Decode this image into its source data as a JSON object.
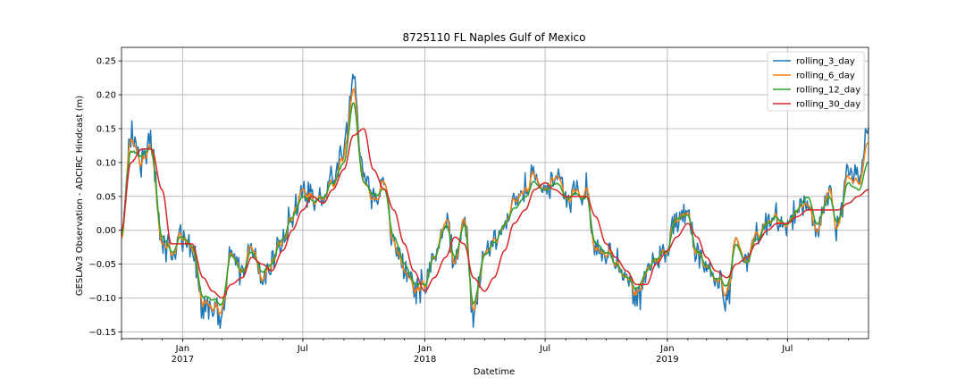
{
  "chart_data": {
    "type": "line",
    "title": "8725110 FL Naples Gulf of Mexico",
    "xlabel": "Datetime",
    "ylabel": "GESLAv3 Observation - ADCIRC Hindcast (m)",
    "xlim": [
      "2016-10-01",
      "2019-10-31"
    ],
    "ylim": [
      -0.16,
      0.27
    ],
    "grid": true,
    "legend_position": "top-right",
    "y_ticks": [
      -0.15,
      -0.1,
      -0.05,
      0.0,
      0.05,
      0.1,
      0.15,
      0.2,
      0.25
    ],
    "y_tick_labels": [
      "−0.15",
      "−0.10",
      "−0.05",
      "0.00",
      "0.05",
      "0.10",
      "0.15",
      "0.20",
      "0.25"
    ],
    "x_major_ticks": [
      {
        "date": "2017-01-01",
        "label": "Jan",
        "sublabel": "2017"
      },
      {
        "date": "2017-07-01",
        "label": "Jul",
        "sublabel": ""
      },
      {
        "date": "2018-01-01",
        "label": "Jan",
        "sublabel": "2018"
      },
      {
        "date": "2018-07-01",
        "label": "Jul",
        "sublabel": ""
      },
      {
        "date": "2019-01-01",
        "label": "Jan",
        "sublabel": "2019"
      },
      {
        "date": "2019-07-01",
        "label": "Jul",
        "sublabel": ""
      }
    ],
    "anchor_dates": [
      "2016-10-01",
      "2016-10-15",
      "2016-11-01",
      "2016-11-15",
      "2016-12-01",
      "2016-12-15",
      "2017-01-01",
      "2017-01-15",
      "2017-02-01",
      "2017-02-15",
      "2017-03-01",
      "2017-03-15",
      "2017-04-01",
      "2017-04-15",
      "2017-05-01",
      "2017-05-15",
      "2017-06-01",
      "2017-06-15",
      "2017-07-01",
      "2017-07-15",
      "2017-08-01",
      "2017-08-15",
      "2017-09-01",
      "2017-09-15",
      "2017-10-01",
      "2017-10-15",
      "2017-11-01",
      "2017-11-15",
      "2017-12-01",
      "2017-12-15",
      "2018-01-01",
      "2018-01-15",
      "2018-02-01",
      "2018-02-15",
      "2018-03-01",
      "2018-03-15",
      "2018-04-01",
      "2018-04-15",
      "2018-05-01",
      "2018-05-15",
      "2018-06-01",
      "2018-06-15",
      "2018-07-01",
      "2018-07-15",
      "2018-08-01",
      "2018-08-15",
      "2018-09-01",
      "2018-09-15",
      "2018-10-01",
      "2018-10-15",
      "2018-11-01",
      "2018-11-15",
      "2018-12-01",
      "2018-12-15",
      "2019-01-01",
      "2019-01-15",
      "2019-02-01",
      "2019-02-15",
      "2019-03-01",
      "2019-03-15",
      "2019-04-01",
      "2019-04-15",
      "2019-05-01",
      "2019-05-15",
      "2019-06-01",
      "2019-06-15",
      "2019-07-01",
      "2019-07-15",
      "2019-08-01",
      "2019-08-15",
      "2019-09-01",
      "2019-09-15",
      "2019-10-01",
      "2019-10-15",
      "2019-10-31"
    ],
    "series": [
      {
        "name": "rolling_3_day",
        "color": "#1f77b4",
        "smooth": 0,
        "detail": 0.018,
        "values": [
          -0.02,
          0.15,
          0.1,
          0.13,
          -0.02,
          -0.03,
          -0.01,
          -0.02,
          -0.12,
          -0.11,
          -0.13,
          -0.04,
          -0.06,
          -0.02,
          -0.07,
          -0.05,
          -0.01,
          0.02,
          0.06,
          0.04,
          0.05,
          0.08,
          0.12,
          0.23,
          0.08,
          0.04,
          0.07,
          -0.02,
          -0.06,
          -0.09,
          -0.08,
          -0.04,
          0.02,
          -0.05,
          0.02,
          -0.13,
          -0.04,
          -0.02,
          0.01,
          0.04,
          0.06,
          0.08,
          0.06,
          0.08,
          0.05,
          0.05,
          0.06,
          -0.03,
          -0.03,
          -0.05,
          -0.07,
          -0.11,
          -0.06,
          -0.04,
          -0.03,
          0.02,
          0.02,
          -0.03,
          -0.05,
          -0.07,
          -0.1,
          -0.01,
          -0.05,
          0.0,
          0.01,
          0.02,
          0.01,
          0.03,
          0.04,
          0.0,
          0.06,
          0.0,
          0.09,
          0.08,
          0.15
        ]
      },
      {
        "name": "rolling_6_day",
        "color": "#ff7f0e",
        "smooth": 1,
        "detail": 0.012,
        "values": [
          -0.02,
          0.14,
          0.1,
          0.12,
          -0.02,
          -0.03,
          -0.01,
          -0.02,
          -0.11,
          -0.11,
          -0.12,
          -0.04,
          -0.06,
          -0.02,
          -0.07,
          -0.05,
          -0.01,
          0.02,
          0.06,
          0.04,
          0.05,
          0.07,
          0.11,
          0.21,
          0.07,
          0.04,
          0.07,
          -0.02,
          -0.06,
          -0.09,
          -0.08,
          -0.04,
          0.02,
          -0.05,
          0.02,
          -0.12,
          -0.04,
          -0.02,
          0.01,
          0.04,
          0.06,
          0.08,
          0.06,
          0.08,
          0.05,
          0.05,
          0.06,
          -0.03,
          -0.03,
          -0.05,
          -0.07,
          -0.1,
          -0.06,
          -0.04,
          -0.03,
          0.02,
          0.02,
          -0.03,
          -0.05,
          -0.07,
          -0.09,
          -0.01,
          -0.05,
          0.0,
          0.01,
          0.02,
          0.01,
          0.03,
          0.04,
          0.0,
          0.06,
          0.0,
          0.08,
          0.07,
          0.13
        ]
      },
      {
        "name": "rolling_12_day",
        "color": "#2ca02c",
        "smooth": 2,
        "detail": 0.007,
        "values": [
          -0.01,
          0.12,
          0.11,
          0.12,
          -0.01,
          -0.03,
          -0.01,
          -0.02,
          -0.1,
          -0.1,
          -0.11,
          -0.04,
          -0.06,
          -0.03,
          -0.06,
          -0.05,
          -0.01,
          0.02,
          0.05,
          0.04,
          0.05,
          0.07,
          0.1,
          0.19,
          0.07,
          0.05,
          0.06,
          -0.01,
          -0.05,
          -0.08,
          -0.08,
          -0.04,
          0.01,
          -0.04,
          0.01,
          -0.11,
          -0.04,
          -0.02,
          0.01,
          0.03,
          0.05,
          0.07,
          0.06,
          0.07,
          0.05,
          0.05,
          0.05,
          -0.02,
          -0.03,
          -0.05,
          -0.07,
          -0.09,
          -0.06,
          -0.04,
          -0.03,
          0.02,
          0.02,
          -0.03,
          -0.05,
          -0.07,
          -0.08,
          -0.02,
          -0.05,
          -0.01,
          0.01,
          0.02,
          0.01,
          0.03,
          0.05,
          0.01,
          0.05,
          0.01,
          0.07,
          0.06,
          0.1
        ]
      },
      {
        "name": "rolling_30_day",
        "color": "#d62728",
        "smooth": 3,
        "detail": 0.0,
        "values": [
          0.0,
          0.1,
          0.12,
          0.12,
          0.06,
          -0.02,
          -0.02,
          -0.02,
          -0.07,
          -0.09,
          -0.1,
          -0.08,
          -0.07,
          -0.04,
          -0.05,
          -0.06,
          -0.03,
          0.0,
          0.03,
          0.05,
          0.04,
          0.06,
          0.09,
          0.14,
          0.15,
          0.09,
          0.06,
          0.03,
          -0.02,
          -0.06,
          -0.09,
          -0.07,
          -0.04,
          -0.01,
          -0.02,
          -0.07,
          -0.09,
          -0.07,
          -0.03,
          0.01,
          0.03,
          0.06,
          0.07,
          0.06,
          0.05,
          0.05,
          0.05,
          0.02,
          -0.02,
          -0.04,
          -0.06,
          -0.08,
          -0.08,
          -0.05,
          -0.03,
          -0.01,
          0.01,
          -0.01,
          -0.04,
          -0.06,
          -0.07,
          -0.05,
          -0.04,
          -0.02,
          0.0,
          0.01,
          0.01,
          0.02,
          0.03,
          0.03,
          0.03,
          0.03,
          0.04,
          0.05,
          0.06
        ]
      }
    ]
  }
}
